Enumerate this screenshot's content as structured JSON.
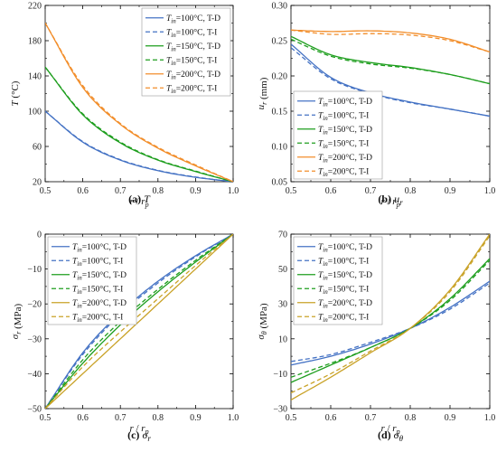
{
  "chart_data": [
    {
      "type": "line",
      "caption_label": "(a)",
      "caption_sym": "T",
      "xlabel": "r / r_p",
      "ylabel": "T (°C)",
      "xlim": [
        0.5,
        1.0
      ],
      "ylim": [
        20,
        220
      ],
      "xticks": [
        "0.5",
        "0.6",
        "0.7",
        "0.8",
        "0.9",
        "1.0"
      ],
      "yticks": [
        "20",
        "60",
        "100",
        "140",
        "180",
        "220"
      ],
      "legend_position": "top-right",
      "series": [
        {
          "name": "T_in=100°C, T-D",
          "sym": "T",
          "sub": "in",
          "rest": "=100°C, T-D",
          "color": "#4472C4",
          "dash": false,
          "x": [
            0.5,
            0.6,
            0.7,
            0.8,
            0.9,
            1.0
          ],
          "values": [
            100,
            64.9,
            44.5,
            32.5,
            25,
            20
          ]
        },
        {
          "name": "T_in=100°C, T-I",
          "sym": "T",
          "sub": "in",
          "rest": "=100°C, T-I",
          "color": "#4472C4",
          "dash": true,
          "x": [
            0.5,
            0.6,
            0.7,
            0.8,
            0.9,
            1.0
          ],
          "values": [
            100,
            65.5,
            45.0,
            32.9,
            25.3,
            20
          ]
        },
        {
          "name": "T_in=150°C, T-D",
          "sym": "T",
          "sub": "in",
          "rest": "=150°C, T-D",
          "color": "#1E9E1E",
          "dash": false,
          "x": [
            0.5,
            0.6,
            0.7,
            0.8,
            0.9,
            1.0
          ],
          "values": [
            150,
            96,
            64,
            44.5,
            31.5,
            20
          ]
        },
        {
          "name": "T_in=150°C, T-I",
          "sym": "T",
          "sub": "in",
          "rest": "=150°C, T-I",
          "color": "#1E9E1E",
          "dash": true,
          "x": [
            0.5,
            0.6,
            0.7,
            0.8,
            0.9,
            1.0
          ],
          "values": [
            150,
            97,
            65,
            45,
            32,
            20
          ]
        },
        {
          "name": "T_in=200°C, T-D",
          "sym": "T",
          "sub": "in",
          "rest": "=200°C, T-D",
          "color": "#F28E2B",
          "dash": false,
          "x": [
            0.5,
            0.6,
            0.7,
            0.8,
            0.9,
            1.0
          ],
          "values": [
            200,
            127,
            85,
            58,
            38,
            20
          ]
        },
        {
          "name": "T_in=200°C, T-I",
          "sym": "T",
          "sub": "in",
          "rest": "=200°C, T-I",
          "color": "#F28E2B",
          "dash": true,
          "x": [
            0.5,
            0.6,
            0.7,
            0.8,
            0.9,
            1.0
          ],
          "values": [
            200,
            129,
            86,
            59,
            39,
            20
          ]
        }
      ]
    },
    {
      "type": "line",
      "caption_label": "(b)",
      "caption_sym": "u_r",
      "xlabel": "r / r_p",
      "ylabel": "u_r (mm)",
      "xlim": [
        0.5,
        1.0
      ],
      "ylim": [
        0.05,
        0.3
      ],
      "xticks": [
        "0.5",
        "0.6",
        "0.7",
        "0.8",
        "0.9",
        "1.0"
      ],
      "yticks": [
        "0.05",
        "0.10",
        "0.15",
        "0.20",
        "0.25",
        "0.30"
      ],
      "legend_position": "lower-left",
      "series": [
        {
          "name": "T_in=100°C, T-D",
          "sym": "T",
          "sub": "in",
          "rest": "=100°C, T-D",
          "color": "#4472C4",
          "dash": false,
          "x": [
            0.5,
            0.6,
            0.7,
            0.8,
            0.9,
            1.0
          ],
          "values": [
            0.245,
            0.198,
            0.176,
            0.163,
            0.153,
            0.143
          ]
        },
        {
          "name": "T_in=100°C, T-I",
          "sym": "T",
          "sub": "in",
          "rest": "=100°C, T-I",
          "color": "#4472C4",
          "dash": true,
          "x": [
            0.5,
            0.6,
            0.7,
            0.8,
            0.9,
            1.0
          ],
          "values": [
            0.24,
            0.196,
            0.175,
            0.162,
            0.153,
            0.143
          ]
        },
        {
          "name": "T_in=150°C, T-D",
          "sym": "T",
          "sub": "in",
          "rest": "=150°C, T-D",
          "color": "#1E9E1E",
          "dash": false,
          "x": [
            0.5,
            0.6,
            0.7,
            0.8,
            0.9,
            1.0
          ],
          "values": [
            0.256,
            0.23,
            0.219,
            0.212,
            0.202,
            0.189
          ]
        },
        {
          "name": "T_in=150°C, T-I",
          "sym": "T",
          "sub": "in",
          "rest": "=150°C, T-I",
          "color": "#1E9E1E",
          "dash": true,
          "x": [
            0.5,
            0.6,
            0.7,
            0.8,
            0.9,
            1.0
          ],
          "values": [
            0.252,
            0.228,
            0.217,
            0.211,
            0.202,
            0.189
          ]
        },
        {
          "name": "T_in=200°C, T-D",
          "sym": "T",
          "sub": "in",
          "rest": "=200°C, T-D",
          "color": "#F28E2B",
          "dash": false,
          "x": [
            0.5,
            0.6,
            0.7,
            0.8,
            0.9,
            1.0
          ],
          "values": [
            0.265,
            0.263,
            0.264,
            0.261,
            0.252,
            0.234
          ]
        },
        {
          "name": "T_in=200°C, T-I",
          "sym": "T",
          "sub": "in",
          "rest": "=200°C, T-I",
          "color": "#F28E2B",
          "dash": true,
          "x": [
            0.5,
            0.6,
            0.7,
            0.8,
            0.9,
            1.0
          ],
          "values": [
            0.265,
            0.259,
            0.26,
            0.258,
            0.25,
            0.234
          ]
        }
      ]
    },
    {
      "type": "line",
      "caption_label": "(c)",
      "caption_sym": "σ_r",
      "xlabel": "r / r_p",
      "ylabel": "σ_r (MPa)",
      "xlim": [
        0.5,
        1.0
      ],
      "ylim": [
        -50,
        0
      ],
      "xticks": [
        "0.5",
        "0.6",
        "0.7",
        "0.8",
        "0.9",
        "1.0"
      ],
      "yticks": [
        "−50",
        "−40",
        "−30",
        "−20",
        "−10",
        "0"
      ],
      "legend_position": "top-left",
      "series": [
        {
          "name": "T_in=100°C, T-D",
          "sym": "T",
          "sub": "in",
          "rest": "=100°C, T-D",
          "color": "#4472C4",
          "dash": false,
          "x": [
            0.5,
            0.6,
            0.7,
            0.8,
            0.9,
            1.0
          ],
          "values": [
            -50,
            -34,
            -22.5,
            -13.5,
            -6.2,
            0
          ]
        },
        {
          "name": "T_in=100°C, T-I",
          "sym": "T",
          "sub": "in",
          "rest": "=100°C, T-I",
          "color": "#4472C4",
          "dash": true,
          "x": [
            0.5,
            0.6,
            0.7,
            0.8,
            0.9,
            1.0
          ],
          "values": [
            -50,
            -34.5,
            -23,
            -14,
            -6.5,
            0
          ]
        },
        {
          "name": "T_in=150°C, T-D",
          "sym": "T",
          "sub": "in",
          "rest": "=150°C, T-D",
          "color": "#1E9E1E",
          "dash": false,
          "x": [
            0.5,
            0.6,
            0.7,
            0.8,
            0.9,
            1.0
          ],
          "values": [
            -50,
            -37,
            -26,
            -16.5,
            -8,
            0
          ]
        },
        {
          "name": "T_in=150°C, T-I",
          "sym": "T",
          "sub": "in",
          "rest": "=150°C, T-I",
          "color": "#1E9E1E",
          "dash": true,
          "x": [
            0.5,
            0.6,
            0.7,
            0.8,
            0.9,
            1.0
          ],
          "values": [
            -50,
            -36,
            -25,
            -15.8,
            -7.5,
            0
          ]
        },
        {
          "name": "T_in=200°C, T-D",
          "sym": "T",
          "sub": "in",
          "rest": "=200°C, T-D",
          "color": "#C9A227",
          "dash": false,
          "x": [
            0.5,
            0.6,
            0.7,
            0.8,
            0.9,
            1.0
          ],
          "values": [
            -50,
            -40,
            -30,
            -20,
            -10,
            0
          ]
        },
        {
          "name": "T_in=200°C, T-I",
          "sym": "T",
          "sub": "in",
          "rest": "=200°C, T-I",
          "color": "#C9A227",
          "dash": true,
          "x": [
            0.5,
            0.6,
            0.7,
            0.8,
            0.9,
            1.0
          ],
          "values": [
            -50,
            -38,
            -28,
            -18.5,
            -9,
            0
          ]
        }
      ]
    },
    {
      "type": "line",
      "caption_label": "(d)",
      "caption_sym": "σ_θ",
      "xlabel": "r / r_p",
      "ylabel": "σ_θ (MPa)",
      "xlim": [
        0.5,
        1.0
      ],
      "ylim": [
        -30,
        70
      ],
      "xticks": [
        "0.5",
        "0.6",
        "0.7",
        "0.8",
        "0.9",
        "1.0"
      ],
      "yticks": [
        "−30",
        "−10",
        "10",
        "30",
        "50",
        "70"
      ],
      "legend_position": "top-left",
      "series": [
        {
          "name": "T_in=100°C, T-D",
          "sym": "T",
          "sub": "in",
          "rest": "=100°C, T-D",
          "color": "#4472C4",
          "dash": false,
          "x": [
            0.5,
            0.6,
            0.7,
            0.8,
            0.9,
            1.0
          ],
          "values": [
            -5,
            0,
            7,
            16,
            28,
            43
          ]
        },
        {
          "name": "T_in=100°C, T-I",
          "sym": "T",
          "sub": "in",
          "rest": "=100°C, T-I",
          "color": "#4472C4",
          "dash": true,
          "x": [
            0.5,
            0.6,
            0.7,
            0.8,
            0.9,
            1.0
          ],
          "values": [
            -3,
            1,
            8,
            16,
            27,
            42
          ]
        },
        {
          "name": "T_in=150°C, T-D",
          "sym": "T",
          "sub": "in",
          "rest": "=150°C, T-D",
          "color": "#1E9E1E",
          "dash": false,
          "x": [
            0.5,
            0.6,
            0.7,
            0.8,
            0.9,
            1.0
          ],
          "values": [
            -15,
            -5,
            5,
            16,
            33,
            56
          ]
        },
        {
          "name": "T_in=150°C, T-I",
          "sym": "T",
          "sub": "in",
          "rest": "=150°C, T-I",
          "color": "#1E9E1E",
          "dash": true,
          "x": [
            0.5,
            0.6,
            0.7,
            0.8,
            0.9,
            1.0
          ],
          "values": [
            -12,
            -4,
            5,
            16,
            32,
            55
          ]
        },
        {
          "name": "T_in=200°C, T-D",
          "sym": "T",
          "sub": "in",
          "rest": "=200°C, T-D",
          "color": "#C9A227",
          "dash": false,
          "x": [
            0.5,
            0.6,
            0.7,
            0.8,
            0.9,
            1.0
          ],
          "values": [
            -25,
            -12,
            2,
            16,
            38,
            70
          ]
        },
        {
          "name": "T_in=200°C, T-I",
          "sym": "T",
          "sub": "in",
          "rest": "=200°C, T-I",
          "color": "#C9A227",
          "dash": true,
          "x": [
            0.5,
            0.6,
            0.7,
            0.8,
            0.9,
            1.0
          ],
          "values": [
            -21,
            -10,
            3,
            16,
            37,
            69
          ]
        }
      ]
    }
  ]
}
